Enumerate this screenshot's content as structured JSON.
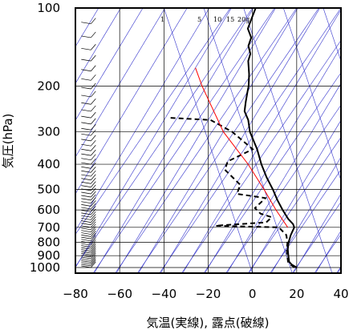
{
  "chart_data": {
    "type": "line",
    "subtype": "skew-T log-p sounding diagram",
    "xlabel": "気温(実線), 露点(破線)",
    "ylabel": "気圧(hPa)",
    "x_unit": "°C",
    "y_unit": "hPa",
    "y_scale": "log",
    "y_inverted": true,
    "xlim": [
      -80,
      40
    ],
    "ylim": [
      1050,
      100
    ],
    "x_ticks": [
      "−80",
      "−60",
      "−40",
      "−20",
      "0",
      "20",
      "40"
    ],
    "x_tick_values": [
      -80,
      -60,
      -40,
      -20,
      0,
      20,
      40
    ],
    "y_ticks": [
      "100",
      "200",
      "300",
      "400",
      "500",
      "600",
      "700",
      "800",
      "900",
      "1000"
    ],
    "y_tick_values": [
      100,
      200,
      300,
      400,
      500,
      600,
      700,
      800,
      900,
      1000
    ],
    "mixing_ratio_labels": [
      "1",
      "5",
      "10",
      "15",
      "20g"
    ],
    "grid": true,
    "colors": {
      "temperature": "#000000",
      "dewpoint": "#000000",
      "reference_line": "#ff0000",
      "background_lines": "#3333cc",
      "grid": "#000000",
      "wind_barbs": "#000000"
    },
    "series": [
      {
        "role": "temperature",
        "style": "solid",
        "points": [
          {
            "p": 1000,
            "t": 20
          },
          {
            "p": 975,
            "t": 17
          },
          {
            "p": 950,
            "t": 15
          },
          {
            "p": 925,
            "t": 14
          },
          {
            "p": 900,
            "t": 13
          },
          {
            "p": 850,
            "t": 11
          },
          {
            "p": 800,
            "t": 9.5
          },
          {
            "p": 750,
            "t": 8.5
          },
          {
            "p": 700,
            "t": 8
          },
          {
            "p": 680,
            "t": 6.5
          },
          {
            "p": 650,
            "t": 3
          },
          {
            "p": 600,
            "t": -2
          },
          {
            "p": 550,
            "t": -7
          },
          {
            "p": 500,
            "t": -12
          },
          {
            "p": 450,
            "t": -18
          },
          {
            "p": 400,
            "t": -24
          },
          {
            "p": 350,
            "t": -30
          },
          {
            "p": 300,
            "t": -38
          },
          {
            "p": 270,
            "t": -42
          },
          {
            "p": 250,
            "t": -46
          },
          {
            "p": 230,
            "t": -48
          },
          {
            "p": 210,
            "t": -50
          },
          {
            "p": 200,
            "t": -51
          },
          {
            "p": 180,
            "t": -54
          },
          {
            "p": 160,
            "t": -58
          },
          {
            "p": 150,
            "t": -59
          },
          {
            "p": 140,
            "t": -62
          },
          {
            "p": 130,
            "t": -63
          },
          {
            "p": 120,
            "t": -67
          },
          {
            "p": 110,
            "t": -68
          },
          {
            "p": 100,
            "t": -69
          }
        ]
      },
      {
        "role": "dewpoint",
        "style": "dashed",
        "points": [
          {
            "p": 1000,
            "t": 19
          },
          {
            "p": 975,
            "t": 16.5
          },
          {
            "p": 950,
            "t": 14.5
          },
          {
            "p": 925,
            "t": 13.5
          },
          {
            "p": 900,
            "t": 12.5
          },
          {
            "p": 850,
            "t": 10.5
          },
          {
            "p": 800,
            "t": 9
          },
          {
            "p": 750,
            "t": 6.5
          },
          {
            "p": 700,
            "t": 1
          },
          {
            "p": 690,
            "t": -28
          },
          {
            "p": 670,
            "t": -6
          },
          {
            "p": 640,
            "t": -5
          },
          {
            "p": 620,
            "t": -11
          },
          {
            "p": 590,
            "t": -15
          },
          {
            "p": 540,
            "t": -13
          },
          {
            "p": 520,
            "t": -27
          },
          {
            "p": 480,
            "t": -28
          },
          {
            "p": 420,
            "t": -39
          },
          {
            "p": 390,
            "t": -40
          },
          {
            "p": 350,
            "t": -32
          },
          {
            "p": 300,
            "t": -46
          },
          {
            "p": 270,
            "t": -59
          },
          {
            "p": 265,
            "t": -78
          }
        ]
      },
      {
        "role": "reference_line",
        "style": "solid",
        "points": [
          {
            "p": 700,
            "t": 5
          },
          {
            "p": 600,
            "t": -5
          },
          {
            "p": 500,
            "t": -16
          },
          {
            "p": 400,
            "t": -30
          },
          {
            "p": 300,
            "t": -50
          },
          {
            "p": 200,
            "t": -72
          },
          {
            "p": 170,
            "t": -80
          }
        ]
      }
    ]
  }
}
